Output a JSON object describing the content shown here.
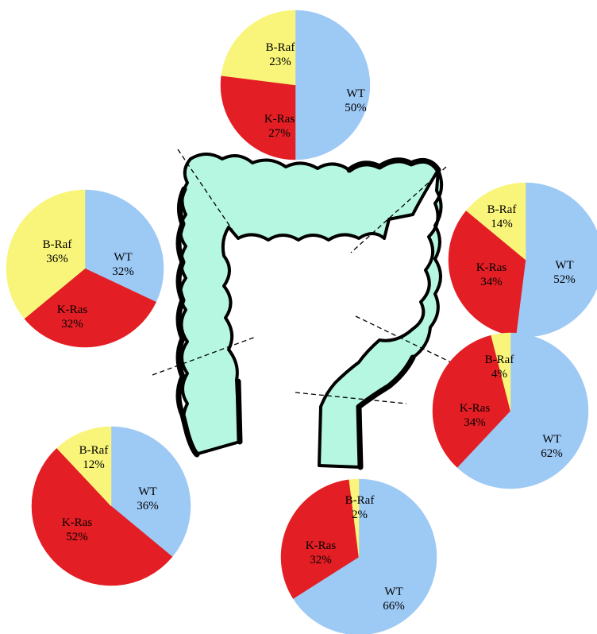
{
  "colors": {
    "WT": "#9dc9f5",
    "K-Ras": "#e31e24",
    "B-Raf": "#f9f57a",
    "colon": "#b6f7e2"
  },
  "chart_data": [
    {
      "type": "pie",
      "id": "top",
      "slices": [
        {
          "label": "WT",
          "pct": "50%",
          "value": 50
        },
        {
          "label": "K-Ras",
          "pct": "27%",
          "value": 27
        },
        {
          "label": "B-Raf",
          "pct": "23%",
          "value": 23
        }
      ]
    },
    {
      "type": "pie",
      "id": "upper-left",
      "slices": [
        {
          "label": "WT",
          "pct": "32%",
          "value": 32
        },
        {
          "label": "K-Ras",
          "pct": "32%",
          "value": 32
        },
        {
          "label": "B-Raf",
          "pct": "36%",
          "value": 36
        }
      ]
    },
    {
      "type": "pie",
      "id": "upper-right",
      "slices": [
        {
          "label": "WT",
          "pct": "52%",
          "value": 52
        },
        {
          "label": "K-Ras",
          "pct": "34%",
          "value": 34
        },
        {
          "label": "B-Raf",
          "pct": "14%",
          "value": 14
        }
      ]
    },
    {
      "type": "pie",
      "id": "lower-right",
      "slices": [
        {
          "label": "WT",
          "pct": "62%",
          "value": 62
        },
        {
          "label": "K-Ras",
          "pct": "34%",
          "value": 34
        },
        {
          "label": "B-Raf",
          "pct": "4%",
          "value": 4
        }
      ]
    },
    {
      "type": "pie",
      "id": "lower-left",
      "slices": [
        {
          "label": "WT",
          "pct": "36%",
          "value": 36
        },
        {
          "label": "K-Ras",
          "pct": "52%",
          "value": 52
        },
        {
          "label": "B-Raf",
          "pct": "12%",
          "value": 12
        }
      ]
    },
    {
      "type": "pie",
      "id": "bottom",
      "slices": [
        {
          "label": "WT",
          "pct": "66%",
          "value": 66
        },
        {
          "label": "K-Ras",
          "pct": "32%",
          "value": 32
        },
        {
          "label": "B-Raf",
          "pct": "2%",
          "value": 2
        }
      ]
    }
  ]
}
